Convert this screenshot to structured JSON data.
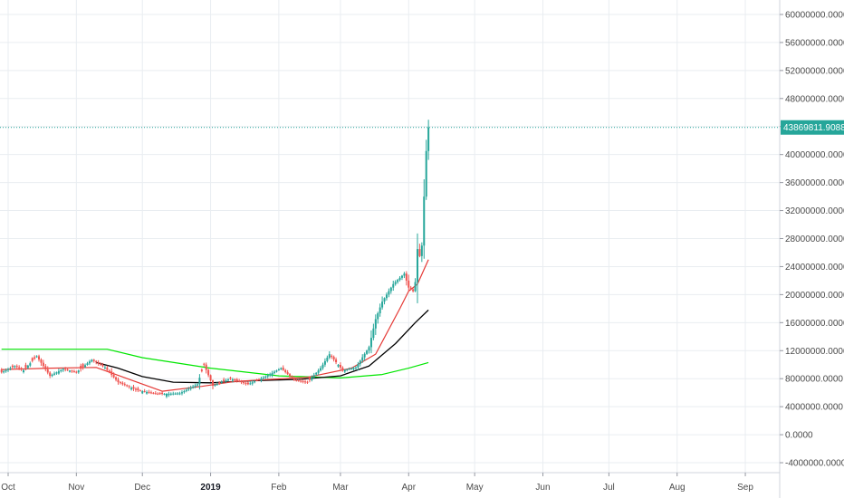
{
  "chart_data": {
    "type": "candlestick",
    "y_axis_labels": [
      "60000000.0000",
      "56000000.0000",
      "52000000.0000",
      "48000000.0000",
      "44000000.0000",
      "40000000.0000",
      "36000000.0000",
      "32000000.0000",
      "28000000.0000",
      "24000000.0000",
      "20000000.0000",
      "16000000.0000",
      "12000000.0000",
      "8000000.0000",
      "4000000.0000",
      "0.0000",
      "-4000000.0000"
    ],
    "y_ticks": [
      60000000,
      56000000,
      52000000,
      48000000,
      44000000,
      40000000,
      36000000,
      32000000,
      28000000,
      24000000,
      20000000,
      16000000,
      12000000,
      8000000,
      4000000,
      0,
      -4000000
    ],
    "x_labels": [
      "Oct",
      "Nov",
      "Dec",
      "2019",
      "Feb",
      "Mar",
      "Apr",
      "May",
      "Jun",
      "Jul",
      "Aug",
      "Sep"
    ],
    "x_label_dates": [
      "2018-10-01",
      "2018-11-01",
      "2018-12-01",
      "2019-01-01",
      "2019-02-01",
      "2019-03-01",
      "2019-04-01",
      "2019-05-01",
      "2019-06-01",
      "2019-07-01",
      "2019-08-01",
      "2019-09-01"
    ],
    "ylim": [
      -6000000,
      62000000
    ],
    "grid": true,
    "last_price": 43869811.9088,
    "last_price_label": "43869811.9088",
    "colors": {
      "up": "#26a69a",
      "down": "#ef5350",
      "sma_fast": "#e53935",
      "sma_mid": "#000000",
      "sma_slow": "#00e600",
      "price_line": "#26a69a",
      "grid": "#e9edf1"
    },
    "anchors": [
      [
        "2018-09-28",
        8900000
      ],
      [
        "2018-10-04",
        9800000
      ],
      [
        "2018-10-08",
        9200000
      ],
      [
        "2018-10-14",
        11200000
      ],
      [
        "2018-10-20",
        8400000
      ],
      [
        "2018-10-26",
        9400000
      ],
      [
        "2018-11-01",
        8900000
      ],
      [
        "2018-11-08",
        10700000
      ],
      [
        "2018-11-14",
        9600000
      ],
      [
        "2018-11-20",
        7500000
      ],
      [
        "2018-11-28",
        6400000
      ],
      [
        "2018-12-08",
        5800000
      ],
      [
        "2018-12-18",
        5900000
      ],
      [
        "2018-12-26",
        7200000
      ],
      [
        "2018-12-29",
        10000000
      ],
      [
        "2019-01-02",
        7000000
      ],
      [
        "2019-01-10",
        8000000
      ],
      [
        "2019-01-18",
        7200000
      ],
      [
        "2019-01-26",
        8300000
      ],
      [
        "2019-02-02",
        9500000
      ],
      [
        "2019-02-08",
        7800000
      ],
      [
        "2019-02-14",
        7500000
      ],
      [
        "2019-02-20",
        9500000
      ],
      [
        "2019-02-24",
        11500000
      ],
      [
        "2019-03-02",
        9200000
      ],
      [
        "2019-03-08",
        9600000
      ],
      [
        "2019-03-14",
        12500000
      ],
      [
        "2019-03-17",
        16500000
      ],
      [
        "2019-03-20",
        19000000
      ],
      [
        "2019-03-25",
        21500000
      ],
      [
        "2019-03-30",
        23000000
      ],
      [
        "2019-04-01",
        21000000
      ],
      [
        "2019-04-03",
        20500000
      ],
      [
        "2019-04-04",
        21800000
      ],
      [
        "2019-04-05",
        26500000
      ],
      [
        "2019-04-06",
        25500000
      ],
      [
        "2019-04-07",
        27000000
      ],
      [
        "2019-04-08",
        34000000
      ],
      [
        "2019-04-09",
        40500000
      ],
      [
        "2019-04-10",
        43869811.9088
      ]
    ],
    "sma_fast": [
      [
        "2018-09-28",
        9300000
      ],
      [
        "2018-10-20",
        9500000
      ],
      [
        "2018-11-10",
        9600000
      ],
      [
        "2018-11-26",
        7800000
      ],
      [
        "2018-12-10",
        6200000
      ],
      [
        "2018-12-28",
        6900000
      ],
      [
        "2019-01-12",
        7600000
      ],
      [
        "2019-01-28",
        7900000
      ],
      [
        "2019-02-14",
        8200000
      ],
      [
        "2019-03-06",
        9500000
      ],
      [
        "2019-03-17",
        11500000
      ],
      [
        "2019-03-28",
        18000000
      ],
      [
        "2019-04-01",
        20500000
      ],
      [
        "2019-04-05",
        21500000
      ],
      [
        "2019-04-10",
        25000000
      ]
    ],
    "sma_mid": [
      [
        "2018-11-10",
        10300000
      ],
      [
        "2018-11-20",
        9500000
      ],
      [
        "2018-12-01",
        8300000
      ],
      [
        "2018-12-15",
        7500000
      ],
      [
        "2019-01-01",
        7400000
      ],
      [
        "2019-01-20",
        7700000
      ],
      [
        "2019-02-10",
        7900000
      ],
      [
        "2019-03-01",
        8400000
      ],
      [
        "2019-03-14",
        9800000
      ],
      [
        "2019-03-26",
        13000000
      ],
      [
        "2019-04-04",
        16000000
      ],
      [
        "2019-04-10",
        17800000
      ]
    ],
    "sma_slow": [
      [
        "2018-09-28",
        12200000
      ],
      [
        "2018-11-15",
        12200000
      ],
      [
        "2018-12-01",
        11000000
      ],
      [
        "2019-01-01",
        9500000
      ],
      [
        "2019-02-01",
        8400000
      ],
      [
        "2019-03-01",
        8100000
      ],
      [
        "2019-03-20",
        8600000
      ],
      [
        "2019-04-01",
        9500000
      ],
      [
        "2019-04-10",
        10300000
      ]
    ]
  }
}
